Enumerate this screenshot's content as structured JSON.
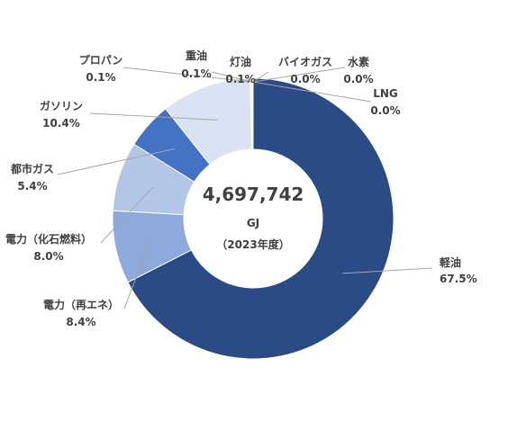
{
  "chart_data": {
    "type": "pie",
    "donut": true,
    "center": {
      "total": "4,697,742",
      "unit": "GJ",
      "year": "（2023年度）"
    },
    "slices": [
      {
        "name": "軽油",
        "value": 67.5,
        "label": "67.5%",
        "color": "#2b4b86"
      },
      {
        "name": "電力（再エネ）",
        "value": 8.4,
        "label": "8.4%",
        "color": "#8ea9db"
      },
      {
        "name": "電力（化石燃料）",
        "value": 8.0,
        "label": "8.0%",
        "color": "#b4c6e7"
      },
      {
        "name": "都市ガス",
        "value": 5.4,
        "label": "5.4%",
        "color": "#4472c4"
      },
      {
        "name": "ガソリン",
        "value": 10.4,
        "label": "10.4%",
        "color": "#dae3f3"
      },
      {
        "name": "プロパン",
        "value": 0.1,
        "label": "0.1%",
        "color": "#dae3f3"
      },
      {
        "name": "重油",
        "value": 0.1,
        "label": "0.1%",
        "color": "#2b4b86"
      },
      {
        "name": "灯油",
        "value": 0.1,
        "label": "0.1%",
        "color": "#2b4b86"
      },
      {
        "name": "バイオガス",
        "value": 0.0,
        "label": "0.0%",
        "color": "#2b4b86"
      },
      {
        "name": "水素",
        "value": 0.0,
        "label": "0.0%",
        "color": "#2b4b86"
      },
      {
        "name": "LNG",
        "value": 0.0,
        "label": "0.0%",
        "color": "#2b4b86"
      }
    ]
  }
}
